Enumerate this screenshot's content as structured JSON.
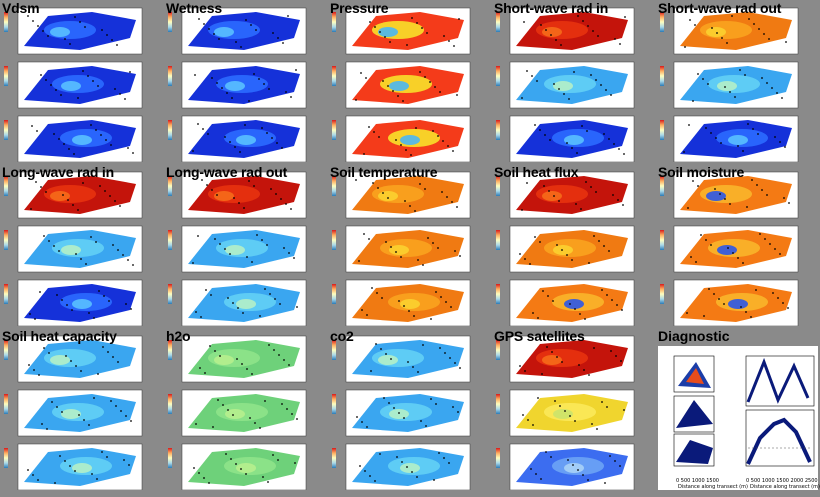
{
  "panels": [
    {
      "title": "Vdsm",
      "scheme": [
        "blue",
        "blue",
        "blue"
      ]
    },
    {
      "title": "Wetness",
      "scheme": [
        "blue",
        "blue",
        "blue"
      ]
    },
    {
      "title": "Pressure",
      "scheme": [
        "stripe",
        "stripe",
        "stripe"
      ]
    },
    {
      "title": "Short-wave rad in",
      "scheme": [
        "red",
        "cyan",
        "blue"
      ]
    },
    {
      "title": "Short-wave rad out",
      "scheme": [
        "orange",
        "cyan",
        "blue"
      ]
    },
    {
      "title": "Long-wave rad in",
      "scheme": [
        "red",
        "cyan",
        "blue"
      ]
    },
    {
      "title": "Long-wave rad out",
      "scheme": [
        "red",
        "cyan",
        "cyan"
      ]
    },
    {
      "title": "Soil temperature",
      "scheme": [
        "orange",
        "orange",
        "orange"
      ]
    },
    {
      "title": "Soil heat flux",
      "scheme": [
        "red",
        "orange",
        "mixed"
      ]
    },
    {
      "title": "Soil moisture",
      "scheme": [
        "mixed",
        "mixed",
        "mixed"
      ]
    },
    {
      "title": "Soil heat capacity",
      "scheme": [
        "cyan",
        "cyan",
        "cyan"
      ]
    },
    {
      "title": "h2o",
      "scheme": [
        "green",
        "green",
        "green"
      ]
    },
    {
      "title": "co2",
      "scheme": [
        "cyan",
        "cyan",
        "cyan"
      ]
    },
    {
      "title": "GPS satellites",
      "scheme": [
        "red",
        "yellow",
        "lightblue"
      ]
    }
  ],
  "diagnostic": {
    "title": "Diagnostic",
    "xlabel": "Distance along transect (m)",
    "left_ticks": [
      "0",
      "500",
      "1000",
      "1500"
    ],
    "right_ticks": [
      "0",
      "500",
      "1000",
      "1500",
      "2000",
      "2500"
    ]
  },
  "colors": {
    "background": "#8a8a8a",
    "blue": "#1a3cff",
    "red": "#e8220e",
    "orange": "#f78a1a",
    "cyan": "#58c8f2",
    "green": "#7ad67a",
    "yellow": "#f2e23a"
  }
}
